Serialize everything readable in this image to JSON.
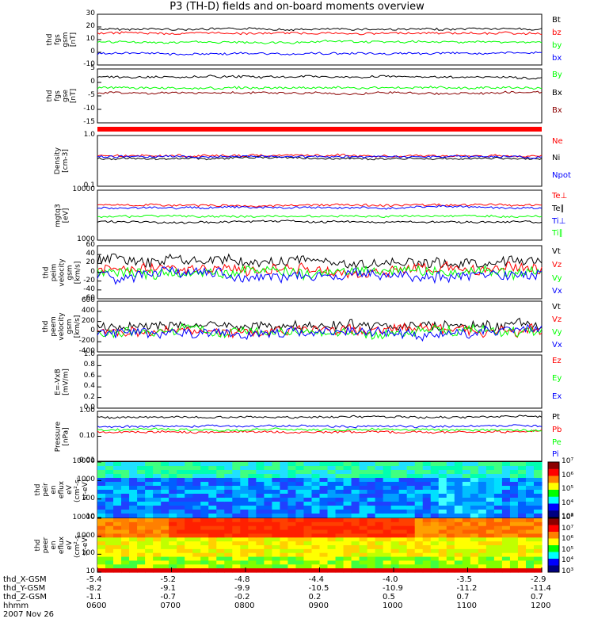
{
  "title": "P3 (TH-D) fields and on-board moments overview",
  "colors": {
    "black": "#000000",
    "red": "#ff0000",
    "green": "#00ff00",
    "blue": "#0000ff",
    "darkred": "#8b0000"
  },
  "chart_data": [
    {
      "type": "line",
      "ylabel": [
        "thd",
        "fgs",
        "gsm",
        "[nT]"
      ],
      "ylim": [
        -10,
        30
      ],
      "yticks": [
        "30",
        "20",
        "10",
        "0",
        "-10"
      ],
      "series": [
        {
          "name": "Bt",
          "color": "#000000",
          "level": 18
        },
        {
          "name": "bz",
          "color": "#ff0000",
          "level": 15
        },
        {
          "name": "by",
          "color": "#00ff00",
          "level": 8
        },
        {
          "name": "bx",
          "color": "#0000ff",
          "level": -1
        }
      ]
    },
    {
      "type": "line",
      "ylabel": [
        "thd",
        "fgs",
        "gse",
        "[nT]"
      ],
      "ylim": [
        -15,
        5
      ],
      "yticks": [
        "5",
        "0",
        "-5",
        "-10",
        "-15"
      ],
      "series": [
        {
          "name": "By",
          "color": "#00ff00",
          "level": -2
        },
        {
          "name": "Bx",
          "color": "#000000",
          "level": 2
        },
        {
          "name": "Bx",
          "color": "#8b0000",
          "level": -4
        }
      ]
    },
    {
      "type": "line",
      "ylabel": [
        "Density",
        "[cm-3]"
      ],
      "ylim": [
        0.1,
        1.0
      ],
      "log": true,
      "yticks": [
        "1.0",
        "0.1"
      ],
      "series": [
        {
          "name": "Ne",
          "color": "#ff0000",
          "level": 0.4
        },
        {
          "name": "Ni",
          "color": "#000000",
          "level": 0.35
        },
        {
          "name": "Npot",
          "color": "#0000ff",
          "level": 0.38
        }
      ]
    },
    {
      "type": "line",
      "ylabel": [
        "mgtq3",
        "[eV]"
      ],
      "ylim": [
        1000,
        10000
      ],
      "log": true,
      "yticks": [
        "10000",
        "1000"
      ],
      "series": [
        {
          "name": "Te⊥",
          "color": "#ff0000",
          "level": 5000
        },
        {
          "name": "Te∥",
          "color": "#000000",
          "level": 2300
        },
        {
          "name": "Ti⊥",
          "color": "#0000ff",
          "level": 4500
        },
        {
          "name": "Ti∥",
          "color": "#00ff00",
          "level": 3000
        }
      ]
    },
    {
      "type": "line",
      "ylabel": [
        "thd",
        "peim",
        "velocity",
        "gsm",
        "[km/s]"
      ],
      "ylim": [
        -60,
        60
      ],
      "yticks": [
        "60",
        "40",
        "20",
        "0",
        "-20",
        "-40",
        "-60"
      ],
      "series": [
        {
          "name": "Vt",
          "color": "#000000",
          "level": 25
        },
        {
          "name": "Vz",
          "color": "#ff0000",
          "level": 5
        },
        {
          "name": "Vy",
          "color": "#00ff00",
          "level": 0
        },
        {
          "name": "Vx",
          "color": "#0000ff",
          "level": -5
        }
      ]
    },
    {
      "type": "line",
      "ylabel": [
        "thd",
        "peem",
        "velocity",
        "gsm",
        "[km/s]"
      ],
      "ylim": [
        -400,
        600
      ],
      "yticks": [
        "600",
        "400",
        "200",
        "0",
        "-200",
        "-400"
      ],
      "series": [
        {
          "name": "Vt",
          "color": "#000000",
          "level": 120
        },
        {
          "name": "Vz",
          "color": "#ff0000",
          "level": 0
        },
        {
          "name": "Vy",
          "color": "#00ff00",
          "level": -20
        },
        {
          "name": "Vx",
          "color": "#0000ff",
          "level": -40
        }
      ]
    },
    {
      "type": "line",
      "ylabel": [
        "E=-VxB",
        "[mV/m]"
      ],
      "ylim": [
        0,
        1.0
      ],
      "yticks": [
        "1.0",
        "0.8",
        "0.6",
        "0.4",
        "0.2",
        "0.0"
      ],
      "series": [
        {
          "name": "Ez",
          "color": "#ff0000"
        },
        {
          "name": "Ey",
          "color": "#00ff00"
        },
        {
          "name": "Ex",
          "color": "#0000ff"
        }
      ]
    },
    {
      "type": "line",
      "ylabel": [
        "Pressure",
        "[nPa]"
      ],
      "ylim": [
        0.01,
        1.0
      ],
      "log": true,
      "yticks": [
        "1.00",
        "0.10",
        "0.01"
      ],
      "series": [
        {
          "name": "Pt",
          "color": "#000000",
          "level": 0.6
        },
        {
          "name": "Pb",
          "color": "#ff0000",
          "level": 0.15
        },
        {
          "name": "Pe",
          "color": "#00ff00",
          "level": 0.18
        },
        {
          "name": "Pi",
          "color": "#0000ff",
          "level": 0.25
        }
      ]
    },
    {
      "type": "heatmap",
      "ylabel": [
        "thd",
        "peir",
        "en",
        "eflux",
        "eV",
        "(cm²-s-",
        "sr-eV)"
      ],
      "ylim": [
        10,
        10000
      ],
      "yticks": [
        "10000",
        "1000",
        "100",
        "10"
      ],
      "colorbar": [
        "10⁷",
        "10⁶",
        "10⁵",
        "10⁴",
        "10³"
      ]
    },
    {
      "type": "heatmap",
      "ylabel": [
        "thd",
        "peer",
        "en",
        "eflux",
        "eV",
        "(cm²-s-",
        "sr-eV)"
      ],
      "ylim": [
        10,
        10000
      ],
      "yticks": [
        "10000",
        "1000",
        "100",
        "10"
      ],
      "colorbar": [
        "10⁸",
        "10⁷",
        "10⁶",
        "10⁵",
        "10⁴",
        "10³"
      ]
    }
  ],
  "xaxis": {
    "rows": [
      {
        "label": "thd_X-GSM",
        "values": [
          "-5.4",
          "-5.2",
          "-4.8",
          "-4.4",
          "-4.0",
          "-3.5",
          "-2.9"
        ]
      },
      {
        "label": "thd_Y-GSM",
        "values": [
          "-8.2",
          "-9.1",
          "-9.9",
          "-10.5",
          "-10.9",
          "-11.2",
          "-11.4"
        ]
      },
      {
        "label": "thd_Z-GSM",
        "values": [
          "-1.1",
          "-0.7",
          "-0.2",
          "0.2",
          "0.5",
          "0.7",
          "0.7"
        ]
      },
      {
        "label": "hhmm",
        "values": [
          "0600",
          "0700",
          "0800",
          "0900",
          "1000",
          "1100",
          "1200"
        ]
      }
    ],
    "date": "2007 Nov 26"
  }
}
